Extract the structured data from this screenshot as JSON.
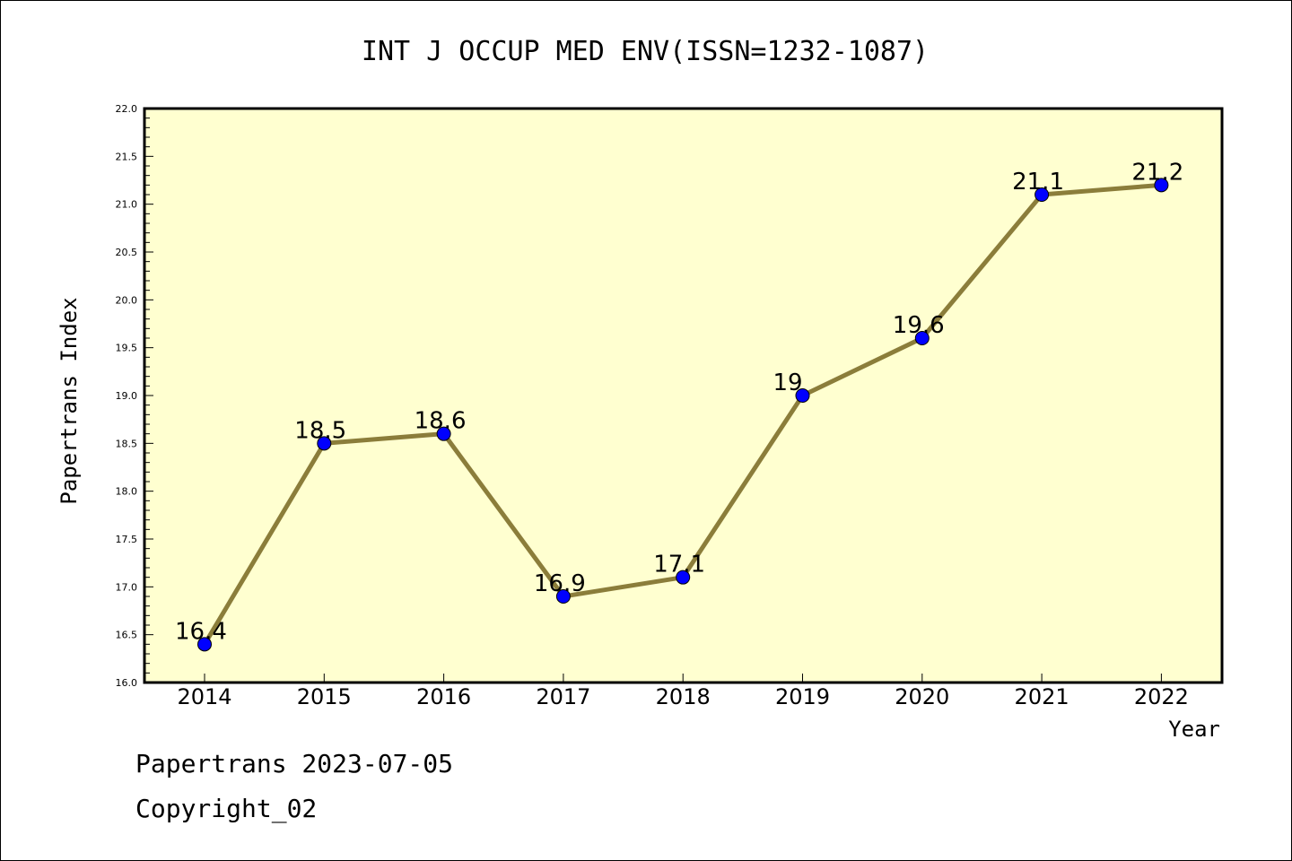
{
  "chart_data": {
    "type": "line",
    "title": "INT J OCCUP MED ENV(ISSN=1232-1087)",
    "xlabel": "Year",
    "ylabel": "Papertrans Index",
    "categories": [
      "2014",
      "2015",
      "2016",
      "2017",
      "2018",
      "2019",
      "2020",
      "2021",
      "2022"
    ],
    "values": [
      16.4,
      18.5,
      18.6,
      16.9,
      17.1,
      19.0,
      19.6,
      21.1,
      21.2
    ],
    "data_labels": [
      "16.4",
      "18.5",
      "18.6",
      "16.9",
      "17.1",
      "19",
      "19.6",
      "21.1",
      "21.2"
    ],
    "ylim": [
      16.0,
      22.0
    ],
    "yticks": [
      "16.0",
      "16.5",
      "17.0",
      "17.5",
      "18.0",
      "18.5",
      "19.0",
      "19.5",
      "20.0",
      "20.5",
      "21.0",
      "21.5",
      "22.0"
    ],
    "grid": false,
    "colors": {
      "plot_background": "#ffffd0",
      "line": "#8b7d3a",
      "marker": "#0000ff"
    }
  },
  "footer": {
    "line1": "Papertrans 2023-07-05",
    "line2": "Copyright_02"
  }
}
